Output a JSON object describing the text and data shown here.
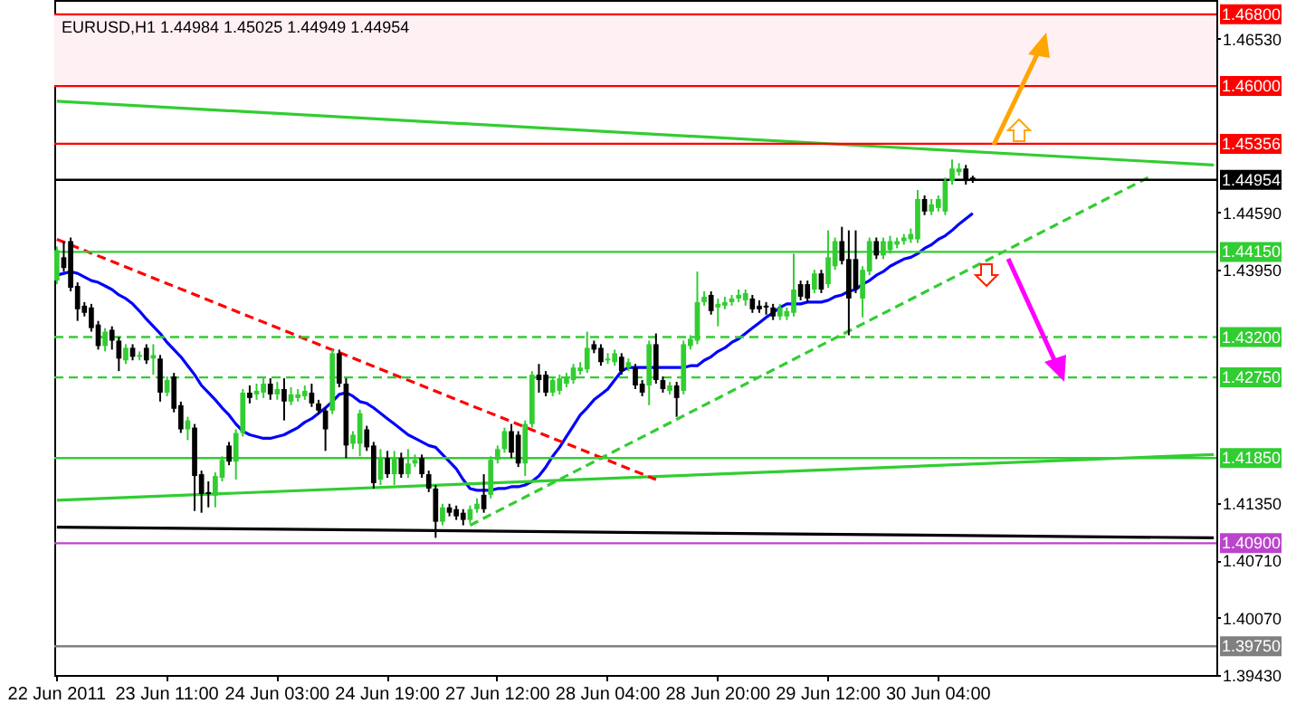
{
  "chart_data": {
    "type": "candlestick",
    "title": "EURUSD,H1  1.44984 1.45025 1.44949 1.44954",
    "categories": [
      "22 Jun 2011",
      null,
      null,
      null,
      null,
      null,
      null,
      null,
      null,
      null,
      null,
      null,
      null,
      null,
      null,
      null,
      "23 Jun 11:00",
      null,
      null,
      null,
      null,
      null,
      null,
      null,
      null,
      null,
      null,
      null,
      null,
      null,
      null,
      null,
      "24 Jun 03:00",
      null,
      null,
      null,
      null,
      null,
      null,
      null,
      null,
      null,
      null,
      null,
      null,
      null,
      null,
      null,
      "24 Jun 19:00",
      null,
      null,
      null,
      null,
      null,
      null,
      null,
      null,
      null,
      null,
      null,
      null,
      null,
      null,
      null,
      "27 Jun 12:00",
      null,
      null,
      null,
      null,
      null,
      null,
      null,
      null,
      null,
      null,
      null,
      null,
      null,
      null,
      null,
      "28 Jun 04:00",
      null,
      null,
      null,
      null,
      null,
      null,
      null,
      null,
      null,
      null,
      null,
      null,
      null,
      null,
      null,
      "28 Jun 20:00",
      null,
      null,
      null,
      null,
      null,
      null,
      null,
      null,
      null,
      null,
      null,
      null,
      null,
      null,
      null,
      "29 Jun 12:00",
      null,
      null,
      null,
      null,
      null,
      null,
      null,
      null,
      null,
      null,
      null,
      null,
      null,
      null,
      null,
      "30 Jun 04:00",
      null,
      null,
      null,
      null,
      null,
      null,
      null,
      null,
      null,
      null,
      null,
      null,
      null,
      null,
      null,
      null,
      null,
      null,
      null,
      null,
      null,
      null,
      null,
      null,
      null,
      null,
      null,
      null,
      null,
      null,
      null,
      null,
      null,
      null,
      null,
      null,
      null,
      null,
      null,
      null
    ],
    "ohlc": [
      [
        1.4383,
        1.4421,
        1.4379,
        1.4417
      ],
      [
        1.4409,
        1.4427,
        1.4393,
        1.4397
      ],
      [
        1.4427,
        1.4431,
        1.4371,
        1.4375
      ],
      [
        1.4377,
        1.4381,
        1.4338,
        1.4351
      ],
      [
        1.4355,
        1.4359,
        1.4343,
        1.4347
      ],
      [
        1.4353,
        1.4357,
        1.4326,
        1.433
      ],
      [
        1.4334,
        1.4338,
        1.4306,
        1.431
      ],
      [
        1.431,
        1.433,
        1.4304,
        1.4326
      ],
      [
        1.4328,
        1.4332,
        1.4306,
        1.4316
      ],
      [
        1.4316,
        1.432,
        1.4282,
        1.4296
      ],
      [
        1.4294,
        1.4312,
        1.429,
        1.4308
      ],
      [
        1.4308,
        1.4312,
        1.4294,
        1.4298
      ],
      [
        1.4298,
        1.4304,
        1.4294,
        1.43
      ],
      [
        1.4308,
        1.4312,
        1.429,
        1.4294
      ],
      [
        1.4296,
        1.4312,
        1.4278,
        1.43
      ],
      [
        1.4296,
        1.43,
        1.4248,
        1.4258
      ],
      [
        1.4258,
        1.4276,
        1.4254,
        1.4272
      ],
      [
        1.4276,
        1.428,
        1.4236,
        1.424
      ],
      [
        1.4244,
        1.4248,
        1.4213,
        1.4217
      ],
      [
        1.4217,
        1.4231,
        1.4205,
        1.4227
      ],
      [
        1.4219,
        1.4223,
        1.4126,
        1.4165
      ],
      [
        1.4167,
        1.4171,
        1.4124,
        1.4145
      ],
      [
        1.4147,
        1.4159,
        1.413,
        1.4145
      ],
      [
        1.4143,
        1.4169,
        1.413,
        1.4165
      ],
      [
        1.4163,
        1.4187,
        1.4159,
        1.4183
      ],
      [
        1.4199,
        1.4203,
        1.4177,
        1.4181
      ],
      [
        1.4181,
        1.4217,
        1.4161,
        1.4213
      ],
      [
        1.4213,
        1.4262,
        1.4209,
        1.4258
      ],
      [
        1.4258,
        1.4266,
        1.4246,
        1.4252
      ],
      [
        1.4256,
        1.4268,
        1.425,
        1.426
      ],
      [
        1.4258,
        1.4274,
        1.4252,
        1.4268
      ],
      [
        1.4268,
        1.4274,
        1.425,
        1.4256
      ],
      [
        1.4256,
        1.427,
        1.425,
        1.4262
      ],
      [
        1.4262,
        1.4274,
        1.4227,
        1.4248
      ],
      [
        1.4248,
        1.4264,
        1.4244,
        1.4256
      ],
      [
        1.4252,
        1.4262,
        1.4248,
        1.4256
      ],
      [
        1.4254,
        1.4266,
        1.425,
        1.426
      ],
      [
        1.4258,
        1.4268,
        1.4242,
        1.4246
      ],
      [
        1.4246,
        1.425,
        1.4234,
        1.4238
      ],
      [
        1.4238,
        1.4242,
        1.4193,
        1.4217
      ],
      [
        1.4238,
        1.4306,
        1.4234,
        1.4302
      ],
      [
        1.4302,
        1.4306,
        1.4264,
        1.4268
      ],
      [
        1.4268,
        1.4274,
        1.4185,
        1.4199
      ],
      [
        1.4201,
        1.4215,
        1.4195,
        1.4211
      ],
      [
        1.4201,
        1.4239,
        1.4187,
        1.4235
      ],
      [
        1.4217,
        1.4221,
        1.4193,
        1.4197
      ],
      [
        1.4199,
        1.4203,
        1.4151,
        1.4157
      ],
      [
        1.4161,
        1.4195,
        1.4155,
        1.4185
      ],
      [
        1.4185,
        1.4193,
        1.4163,
        1.4167
      ],
      [
        1.4167,
        1.4193,
        1.4155,
        1.4185
      ],
      [
        1.4185,
        1.4191,
        1.4163,
        1.4167
      ],
      [
        1.4167,
        1.4195,
        1.4163,
        1.4179
      ],
      [
        1.4179,
        1.4189,
        1.4175,
        1.4183
      ],
      [
        1.4185,
        1.4189,
        1.4163,
        1.4167
      ],
      [
        1.4167,
        1.4171,
        1.4147,
        1.4151
      ],
      [
        1.4151,
        1.4155,
        1.4096,
        1.4114
      ],
      [
        1.4114,
        1.4134,
        1.411,
        1.413
      ],
      [
        1.413,
        1.4134,
        1.412,
        1.4124
      ],
      [
        1.4128,
        1.4132,
        1.4116,
        1.412
      ],
      [
        1.4124,
        1.4128,
        1.411,
        1.4116
      ],
      [
        1.4116,
        1.4132,
        1.4112,
        1.4128
      ],
      [
        1.4128,
        1.414,
        1.4124,
        1.4134
      ],
      [
        1.4144,
        1.4167,
        1.4124,
        1.4128
      ],
      [
        1.4144,
        1.4187,
        1.414,
        1.4183
      ],
      [
        1.4183,
        1.4199,
        1.4179,
        1.4195
      ],
      [
        1.4195,
        1.4219,
        1.4191,
        1.4215
      ],
      [
        1.4215,
        1.4223,
        1.4185,
        1.4191
      ],
      [
        1.4211,
        1.4215,
        1.4175,
        1.4179
      ],
      [
        1.4179,
        1.4227,
        1.4165,
        1.4223
      ],
      [
        1.4223,
        1.4282,
        1.4219,
        1.4278
      ],
      [
        1.4278,
        1.429,
        1.4258,
        1.4272
      ],
      [
        1.4278,
        1.4282,
        1.4254,
        1.4258
      ],
      [
        1.4258,
        1.4276,
        1.4254,
        1.4272
      ],
      [
        1.426,
        1.4278,
        1.4256,
        1.4274
      ],
      [
        1.4268,
        1.428,
        1.4264,
        1.4276
      ],
      [
        1.4272,
        1.429,
        1.4268,
        1.4286
      ],
      [
        1.4282,
        1.4292,
        1.4278,
        1.4286
      ],
      [
        1.4284,
        1.4326,
        1.428,
        1.4308
      ],
      [
        1.4312,
        1.4316,
        1.4302,
        1.4306
      ],
      [
        1.4308,
        1.4312,
        1.4288,
        1.4292
      ],
      [
        1.4294,
        1.4302,
        1.429,
        1.4296
      ],
      [
        1.4292,
        1.4306,
        1.4288,
        1.4302
      ],
      [
        1.4298,
        1.4302,
        1.4278,
        1.4282
      ],
      [
        1.4286,
        1.4296,
        1.4282,
        1.4292
      ],
      [
        1.4286,
        1.429,
        1.4262,
        1.4266
      ],
      [
        1.4268,
        1.4272,
        1.4254,
        1.4258
      ],
      [
        1.4266,
        1.4316,
        1.4244,
        1.4312
      ],
      [
        1.4312,
        1.4324,
        1.4268,
        1.4272
      ],
      [
        1.4272,
        1.4276,
        1.4258,
        1.4262
      ],
      [
        1.426,
        1.427,
        1.4256,
        1.4266
      ],
      [
        1.4266,
        1.427,
        1.4231,
        1.4252
      ],
      [
        1.426,
        1.4316,
        1.4256,
        1.4312
      ],
      [
        1.431,
        1.4322,
        1.4306,
        1.4318
      ],
      [
        1.4316,
        1.4393,
        1.4312,
        1.4359
      ],
      [
        1.4359,
        1.4371,
        1.4355,
        1.4365
      ],
      [
        1.4367,
        1.4371,
        1.4345,
        1.4349
      ],
      [
        1.4353,
        1.4363,
        1.4332,
        1.4357
      ],
      [
        1.4355,
        1.4365,
        1.4351,
        1.4359
      ],
      [
        1.4359,
        1.4367,
        1.4355,
        1.4363
      ],
      [
        1.4363,
        1.4373,
        1.4359,
        1.4367
      ],
      [
        1.4361,
        1.4373,
        1.4355,
        1.4369
      ],
      [
        1.4363,
        1.4367,
        1.4347,
        1.4351
      ],
      [
        1.4355,
        1.4361,
        1.4347,
        1.4351
      ],
      [
        1.4355,
        1.4359,
        1.4345,
        1.4353
      ],
      [
        1.4353,
        1.4357,
        1.4339,
        1.4343
      ],
      [
        1.4343,
        1.4357,
        1.4339,
        1.4353
      ],
      [
        1.4343,
        1.4353,
        1.4339,
        1.4349
      ],
      [
        1.4347,
        1.4413,
        1.4343,
        1.4373
      ],
      [
        1.4379,
        1.4383,
        1.4361,
        1.4365
      ],
      [
        1.4379,
        1.4383,
        1.4359,
        1.4363
      ],
      [
        1.4373,
        1.4395,
        1.4369,
        1.4391
      ],
      [
        1.4391,
        1.4395,
        1.4369,
        1.4373
      ],
      [
        1.4379,
        1.4439,
        1.4375,
        1.4409
      ],
      [
        1.4399,
        1.4431,
        1.4395,
        1.4427
      ],
      [
        1.4427,
        1.4443,
        1.4401,
        1.4405
      ],
      [
        1.4407,
        1.4439,
        1.4322,
        1.4363
      ],
      [
        1.4407,
        1.4439,
        1.4369,
        1.4373
      ],
      [
        1.4363,
        1.4399,
        1.4342,
        1.4395
      ],
      [
        1.4393,
        1.4431,
        1.4389,
        1.4427
      ],
      [
        1.4427,
        1.4431,
        1.4407,
        1.4411
      ],
      [
        1.4411,
        1.4431,
        1.4407,
        1.4427
      ],
      [
        1.4417,
        1.4433,
        1.4413,
        1.4427
      ],
      [
        1.4423,
        1.4431,
        1.4419,
        1.4427
      ],
      [
        1.4427,
        1.4435,
        1.4423,
        1.4431
      ],
      [
        1.4429,
        1.4441,
        1.4425,
        1.4435
      ],
      [
        1.4429,
        1.4484,
        1.4425,
        1.4474
      ],
      [
        1.4474,
        1.4478,
        1.4456,
        1.446
      ],
      [
        1.446,
        1.4474,
        1.4456,
        1.4468
      ],
      [
        1.4464,
        1.4478,
        1.446,
        1.4474
      ],
      [
        1.446,
        1.4498,
        1.4456,
        1.4494
      ],
      [
        1.4494,
        1.4518,
        1.449,
        1.4508
      ],
      [
        1.4504,
        1.4514,
        1.45,
        1.4508
      ],
      [
        1.4508,
        1.4512,
        1.449,
        1.4494
      ],
      [
        1.4498,
        1.45,
        1.4492,
        1.4495
      ],
      null,
      null,
      null,
      null,
      null,
      null,
      null,
      null,
      null,
      null,
      null,
      null,
      null,
      null,
      null,
      null,
      null,
      null,
      null,
      null,
      null,
      null,
      null,
      null,
      null,
      null,
      null,
      null,
      null,
      null,
      null,
      null,
      null,
      null,
      null
    ],
    "series": [
      {
        "type": "line",
        "color": "#0000ff",
        "values": [
          1.4389,
          1.4391,
          1.4393,
          1.4391,
          1.4387,
          1.4383,
          1.4381,
          1.4377,
          1.4373,
          1.4367,
          1.4363,
          1.4357,
          1.4349,
          1.434,
          1.4332,
          1.4324,
          1.4314,
          1.4306,
          1.4298,
          1.4288,
          1.4278,
          1.4266,
          1.4258,
          1.425,
          1.4241,
          1.4233,
          1.4223,
          1.4215,
          1.4211,
          1.4209,
          1.4207,
          1.4207,
          1.4209,
          1.4211,
          1.4215,
          1.4219,
          1.4225,
          1.4229,
          1.4235,
          1.4241,
          1.4248,
          1.4256,
          1.4258,
          1.4254,
          1.4248,
          1.4246,
          1.4241,
          1.4235,
          1.4229,
          1.4223,
          1.4217,
          1.4211,
          1.4207,
          1.4203,
          1.4199,
          1.4197,
          1.4189,
          1.4181,
          1.4173,
          1.4161,
          1.4151,
          1.4149,
          1.4149,
          1.4149,
          1.4151,
          1.4151,
          1.4153,
          1.4153,
          1.4155,
          1.4159,
          1.4165,
          1.4175,
          1.4187,
          1.4197,
          1.4209,
          1.4221,
          1.4233,
          1.4241,
          1.425,
          1.4256,
          1.4262,
          1.4272,
          1.4282,
          1.4286,
          1.4286,
          1.4286,
          1.4286,
          1.4286,
          1.4286,
          1.4286,
          1.4286,
          1.4286,
          1.4288,
          1.4288,
          1.4294,
          1.4298,
          1.4304,
          1.4308,
          1.4314,
          1.4318,
          1.4324,
          1.433,
          1.4336,
          1.4342,
          1.4347,
          1.4353,
          1.4357,
          1.4357,
          1.4357,
          1.4359,
          1.4359,
          1.4359,
          1.4361,
          1.4365,
          1.4367,
          1.4371,
          1.4373,
          1.4379,
          1.4383,
          1.4389,
          1.4393,
          1.4399,
          1.4403,
          1.4407,
          1.4409,
          1.4413,
          1.4419,
          1.4423,
          1.4429,
          1.4433,
          1.4439,
          1.4446,
          1.4452,
          1.4458,
          null,
          null,
          null,
          null,
          null,
          null,
          null,
          null,
          null,
          null,
          null,
          null,
          null,
          null,
          null,
          null,
          null,
          null,
          null,
          null,
          null,
          null,
          null,
          null,
          null,
          null,
          null,
          null,
          null,
          null,
          null,
          null,
          null,
          null,
          null
        ]
      },
      {
        "type": "line",
        "color": "#32cd32",
        "values": [
          1.4583,
          null,
          null,
          null,
          null,
          null,
          null,
          null,
          null,
          null,
          null,
          null,
          null,
          null,
          null,
          null,
          null,
          null,
          null,
          null,
          null,
          null,
          null,
          null,
          null,
          null,
          null,
          null,
          null,
          null,
          null,
          null,
          null,
          null,
          null,
          null,
          null,
          null,
          null,
          null,
          null,
          null,
          null,
          null,
          null,
          null,
          null,
          null,
          null,
          null,
          null,
          null,
          null,
          null,
          null,
          null,
          null,
          null,
          null,
          null,
          null,
          null,
          null,
          null,
          null,
          null,
          null,
          null,
          null,
          null,
          null,
          null,
          null,
          null,
          null,
          null,
          null,
          null,
          null,
          null,
          null,
          null,
          null,
          null,
          null,
          null,
          null,
          null,
          null,
          null,
          null,
          null,
          null,
          null,
          null,
          null,
          null,
          null,
          null,
          null,
          null,
          null,
          null,
          null,
          null,
          null,
          null,
          null,
          null,
          null,
          null,
          null,
          null,
          null,
          null,
          null,
          null,
          null,
          null,
          null,
          null,
          null,
          null,
          null,
          null,
          null,
          null,
          null,
          null,
          null,
          null,
          null,
          null,
          null,
          null,
          null,
          null,
          null,
          null,
          null,
          null,
          null,
          null,
          null,
          null,
          null,
          null,
          null,
          null,
          null,
          null,
          null,
          null,
          null,
          null,
          null,
          null,
          null,
          null,
          null,
          null,
          null,
          null,
          null,
          null,
          null,
          null,
          null,
          1.4512
        ]
      },
      {
        "type": "line",
        "color": "#32cd32",
        "line_style": "dashed",
        "values": [
          null,
          null,
          null,
          null,
          null,
          null,
          null,
          null,
          null,
          null,
          null,
          null,
          null,
          null,
          null,
          null,
          null,
          null,
          null,
          null,
          null,
          null,
          null,
          null,
          null,
          null,
          null,
          null,
          null,
          null,
          null,
          null,
          null,
          null,
          null,
          null,
          null,
          null,
          null,
          null,
          null,
          null,
          null,
          null,
          null,
          null,
          null,
          null,
          null,
          null,
          null,
          null,
          null,
          null,
          null,
          null,
          null,
          null,
          null,
          null,
          1.411,
          null,
          null,
          null,
          null,
          null,
          null,
          null,
          null,
          null,
          null,
          null,
          null,
          null,
          null,
          null,
          null,
          null,
          null,
          null,
          null,
          null,
          null,
          null,
          null,
          null,
          null,
          null,
          null,
          null,
          null,
          null,
          null,
          null,
          null,
          null,
          null,
          null,
          null,
          null,
          null,
          null,
          null,
          null,
          null,
          null,
          null,
          null,
          null,
          null,
          null,
          null,
          null,
          null,
          null,
          null,
          null,
          null,
          null,
          null,
          null,
          null,
          null,
          null,
          null,
          null,
          null,
          null,
          null,
          null,
          null,
          null,
          null,
          null,
          null,
          null,
          null,
          null,
          null,
          null,
          null,
          null,
          null,
          null,
          null,
          null,
          null,
          null,
          null,
          null,
          null,
          null,
          null,
          null,
          null,
          null,
          null,
          null,
          null,
          1.45,
          null,
          null,
          null,
          null,
          null,
          null,
          null,
          null,
          null
        ]
      },
      {
        "type": "line",
        "color": "#32cd32",
        "values": [
          1.4138,
          null,
          null,
          null,
          null,
          null,
          null,
          null,
          null,
          null,
          null,
          null,
          null,
          null,
          null,
          null,
          null,
          null,
          null,
          null,
          null,
          null,
          null,
          null,
          null,
          null,
          null,
          null,
          null,
          null,
          null,
          null,
          null,
          null,
          null,
          null,
          null,
          null,
          null,
          null,
          null,
          null,
          null,
          null,
          null,
          null,
          null,
          null,
          null,
          null,
          null,
          null,
          null,
          null,
          null,
          null,
          null,
          null,
          null,
          null,
          null,
          null,
          null,
          null,
          null,
          null,
          null,
          null,
          null,
          null,
          null,
          null,
          null,
          null,
          null,
          null,
          null,
          null,
          null,
          null,
          null,
          null,
          null,
          null,
          null,
          null,
          null,
          null,
          null,
          null,
          null,
          null,
          null,
          null,
          null,
          null,
          null,
          null,
          null,
          null,
          null,
          null,
          null,
          null,
          null,
          null,
          null,
          null,
          null,
          null,
          null,
          null,
          null,
          null,
          null,
          null,
          null,
          null,
          null,
          null,
          null,
          null,
          null,
          null,
          null,
          null,
          null,
          null,
          null,
          null,
          null,
          null,
          null,
          null,
          null,
          null,
          null,
          null,
          null,
          null,
          null,
          null,
          null,
          null,
          null,
          null,
          null,
          null,
          null,
          null,
          null,
          null,
          null,
          null,
          null,
          null,
          null,
          null,
          null,
          null,
          null,
          null,
          null,
          null,
          null,
          null,
          null,
          null,
          1.4189
        ]
      },
      {
        "type": "line",
        "color": "#ff0000",
        "line_style": "dashed",
        "values": [
          1.4429,
          null,
          null,
          null,
          null,
          null,
          null,
          null,
          null,
          null,
          null,
          null,
          null,
          null,
          null,
          null,
          null,
          null,
          null,
          null,
          null,
          null,
          null,
          null,
          null,
          null,
          null,
          null,
          null,
          null,
          null,
          null,
          null,
          null,
          null,
          null,
          null,
          null,
          null,
          null,
          null,
          null,
          null,
          null,
          null,
          null,
          null,
          null,
          null,
          null,
          null,
          null,
          null,
          null,
          null,
          null,
          null,
          null,
          null,
          null,
          null,
          null,
          null,
          null,
          null,
          null,
          null,
          null,
          null,
          null,
          null,
          null,
          null,
          null,
          null,
          null,
          null,
          null,
          null,
          null,
          null,
          null,
          null,
          null,
          null,
          null,
          null,
          1.4161,
          null,
          null,
          null,
          null,
          null,
          null,
          null,
          null,
          null,
          null,
          null,
          null,
          null,
          null,
          null,
          null,
          null,
          null,
          null,
          null,
          null,
          null,
          null,
          null,
          null,
          null,
          null,
          null,
          null,
          null,
          null,
          null,
          null,
          null,
          null,
          null,
          null,
          null,
          null,
          null,
          null,
          null,
          null,
          null,
          null,
          null,
          null,
          null,
          null,
          null,
          null,
          null,
          null,
          null,
          null,
          null,
          null,
          null,
          null,
          null,
          null,
          null,
          null,
          null,
          null,
          null,
          null,
          null,
          null,
          null,
          null,
          null,
          null,
          null,
          null,
          null,
          null,
          null,
          null,
          null,
          null
        ]
      },
      {
        "type": "line",
        "color": "#000000",
        "values": [
          1.4108,
          null,
          null,
          null,
          null,
          null,
          null,
          null,
          null,
          null,
          null,
          null,
          null,
          null,
          null,
          null,
          null,
          null,
          null,
          null,
          null,
          null,
          null,
          null,
          null,
          null,
          null,
          null,
          null,
          null,
          null,
          null,
          null,
          null,
          null,
          null,
          null,
          null,
          null,
          null,
          null,
          null,
          null,
          null,
          null,
          null,
          null,
          null,
          null,
          null,
          null,
          null,
          null,
          null,
          null,
          null,
          null,
          null,
          null,
          null,
          null,
          null,
          null,
          null,
          null,
          null,
          null,
          null,
          null,
          null,
          null,
          null,
          null,
          null,
          null,
          null,
          null,
          null,
          null,
          null,
          null,
          null,
          null,
          null,
          null,
          null,
          null,
          null,
          null,
          null,
          null,
          null,
          null,
          null,
          null,
          null,
          null,
          null,
          null,
          null,
          null,
          null,
          null,
          null,
          null,
          null,
          null,
          null,
          null,
          null,
          null,
          null,
          null,
          null,
          null,
          null,
          null,
          null,
          null,
          null,
          null,
          null,
          null,
          null,
          null,
          null,
          null,
          null,
          null,
          null,
          null,
          null,
          null,
          null,
          null,
          null,
          null,
          null,
          null,
          null,
          null,
          null,
          null,
          null,
          null,
          null,
          null,
          null,
          null,
          null,
          null,
          null,
          null,
          null,
          null,
          null,
          null,
          null,
          null,
          null,
          null,
          null,
          null,
          null,
          null,
          null,
          null,
          null,
          1.4096
        ]
      }
    ],
    "ylim": [
      1.3943,
      1.4696
    ],
    "yticks": [
      {
        "value": 1.4653,
        "label": "1.46530"
      },
      {
        "value": 1.4459,
        "label": "1.44590"
      },
      {
        "value": 1.4395,
        "label": "1.43950"
      },
      {
        "value": 1.4135,
        "label": "1.41350"
      },
      {
        "value": 1.4071,
        "label": "1.40710"
      },
      {
        "value": 1.4007,
        "label": "1.40070"
      },
      {
        "value": 1.3943,
        "label": "1.39430"
      }
    ],
    "bands": [
      {
        "axis": "y",
        "from": 1.46,
        "to": 1.468,
        "color": "#fff0f3"
      }
    ],
    "ref_lines": [
      {
        "axis": "y",
        "value": 1.468,
        "label": "1.46800",
        "color": "#ff0000"
      },
      {
        "axis": "y",
        "value": 1.46,
        "label": "1.46000",
        "color": "#ff0000"
      },
      {
        "axis": "y",
        "value": 1.45356,
        "label": "1.45356",
        "color": "#ff0000"
      },
      {
        "axis": "y",
        "value": 1.44954,
        "label": "1.44954",
        "color": "#000000"
      },
      {
        "axis": "y",
        "value": 1.4415,
        "label": "1.44150",
        "color": "#32cd32"
      },
      {
        "axis": "y",
        "value": 1.432,
        "label": "1.43200",
        "color": "#32cd32",
        "line_style": "dashed"
      },
      {
        "axis": "y",
        "value": 1.4275,
        "label": "1.42750",
        "color": "#32cd32",
        "line_style": "dashed"
      },
      {
        "axis": "y",
        "value": 1.4185,
        "label": "1.41850",
        "color": "#32cd32"
      },
      {
        "axis": "y",
        "value": 1.409,
        "label": "1.40900",
        "color": "#bb44cc"
      },
      {
        "axis": "y",
        "value": 1.3975,
        "label": "1.39750",
        "color": "#808080"
      }
    ]
  }
}
